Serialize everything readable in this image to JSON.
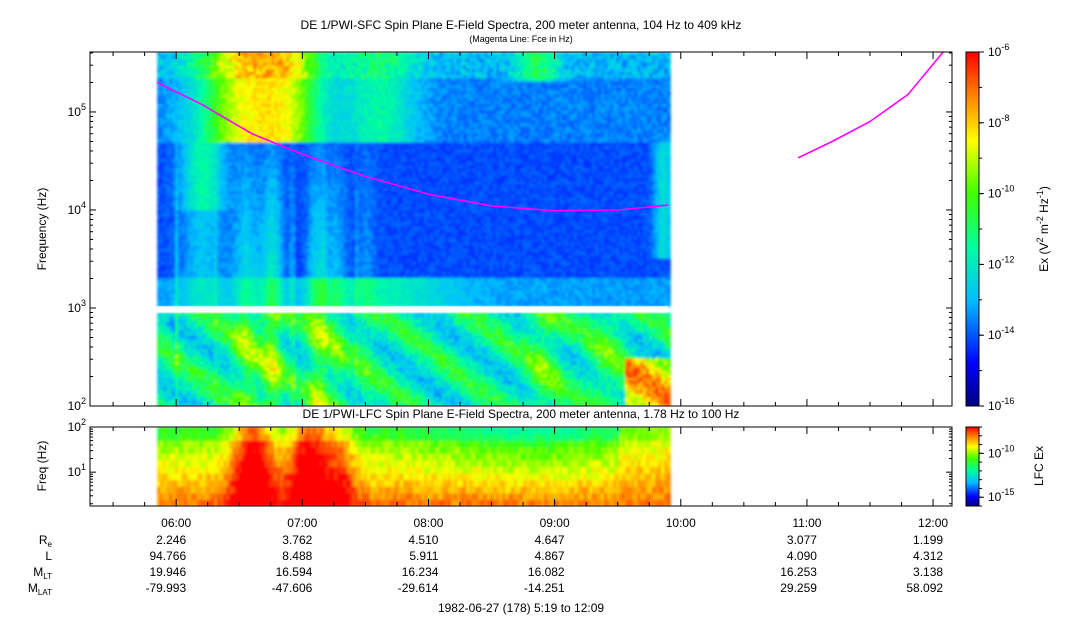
{
  "chart_data": [
    {
      "type": "heatmap",
      "title": "DE 1/PWI-SFC  Spin Plane E-Field Spectra, 200 meter antenna, 104 Hz to 409 kHz",
      "subtitle": "(Magenta Line: Fce in Hz)",
      "ylabel": "Frequency (Hz)",
      "yscale": "log",
      "ylim": [
        100,
        409000
      ],
      "y_ticks": [
        {
          "value": 100,
          "base": "10",
          "exp": "2"
        },
        {
          "value": 1000,
          "base": "10",
          "exp": "3"
        },
        {
          "value": 10000,
          "base": "10",
          "exp": "4"
        },
        {
          "value": 100000,
          "base": "10",
          "exp": "5"
        }
      ],
      "x_range_hours": [
        5.317,
        12.15
      ],
      "data_coverage_hours": [
        5.85,
        9.9
      ],
      "data_gap_hz": [
        900,
        1040
      ],
      "colorbar": {
        "label_base": "Ex (V",
        "label_sup1": "2",
        "label_mid": " m",
        "label_sup2": "-2",
        "label_mid2": " Hz",
        "label_sup3": "-1",
        "label_end": ")",
        "scale": "log",
        "range": [
          1e-16,
          1e-06
        ],
        "ticks": [
          {
            "value": 1e-06,
            "base": "10",
            "exp": "-6"
          },
          {
            "value": 1e-08,
            "base": "10",
            "exp": "-8"
          },
          {
            "value": 1e-10,
            "base": "10",
            "exp": "-10"
          },
          {
            "value": 1e-12,
            "base": "10",
            "exp": "-12"
          },
          {
            "value": 1e-14,
            "base": "10",
            "exp": "-14"
          },
          {
            "value": 1e-16,
            "base": "10",
            "exp": "-16"
          }
        ]
      },
      "fce_line": {
        "color": "#ff00ff",
        "segment1": [
          [
            5.85,
            200000
          ],
          [
            6.2,
            120000
          ],
          [
            6.6,
            60000
          ],
          [
            7.0,
            37000
          ],
          [
            7.5,
            22000
          ],
          [
            8.0,
            14500
          ],
          [
            8.5,
            11000
          ],
          [
            9.0,
            9800
          ],
          [
            9.5,
            10000
          ],
          [
            9.9,
            11200
          ]
        ],
        "segment2": [
          [
            10.93,
            34000
          ],
          [
            11.2,
            50000
          ],
          [
            11.5,
            80000
          ],
          [
            11.8,
            150000
          ],
          [
            12.08,
            409000
          ]
        ]
      }
    },
    {
      "type": "heatmap",
      "title": "DE 1/PWI-LFC  Spin Plane E-Field Spectra, 200 meter antenna, 1.78 Hz to 100 Hz",
      "ylabel": "Freq (Hz)",
      "yscale": "log",
      "ylim": [
        1.78,
        100
      ],
      "y_ticks": [
        {
          "value": 10,
          "base": "10",
          "exp": "1"
        },
        {
          "value": 100,
          "base": "10",
          "exp": "2"
        }
      ],
      "x_range_hours": [
        5.317,
        12.15
      ],
      "data_coverage_hours": [
        5.85,
        9.9
      ],
      "colorbar": {
        "label": "LFC Ex",
        "scale": "log",
        "range": [
          1e-16,
          1e-07
        ],
        "ticks": [
          {
            "value": 1e-10,
            "base": "10",
            "exp": "-10"
          },
          {
            "value": 1e-15,
            "base": "10",
            "exp": "-15"
          }
        ]
      }
    }
  ],
  "x_axis": {
    "ticks": [
      {
        "value": 6,
        "label": "06:00"
      },
      {
        "value": 7,
        "label": "07:00"
      },
      {
        "value": 8,
        "label": "08:00"
      },
      {
        "value": 9,
        "label": "09:00"
      },
      {
        "value": 10,
        "label": "10:00"
      },
      {
        "value": 11,
        "label": "11:00"
      },
      {
        "value": 12,
        "label": "12:00"
      }
    ],
    "minor_step_hours": 0.25
  },
  "ephemeris": {
    "labels": [
      {
        "base": "R",
        "sub": "e"
      },
      {
        "base": "L",
        "sub": ""
      },
      {
        "base": "M",
        "sub": "LT"
      },
      {
        "base": "M",
        "sub": "LAT"
      }
    ],
    "columns": [
      {
        "time": 6,
        "values": [
          "2.246",
          "94.766",
          "19.946",
          "-79.993"
        ]
      },
      {
        "time": 7,
        "values": [
          "3.762",
          "8.488",
          "16.594",
          "-47.606"
        ]
      },
      {
        "time": 8,
        "values": [
          "4.510",
          "5.911",
          "16.234",
          "-29.614"
        ]
      },
      {
        "time": 9,
        "values": [
          "4.647",
          "4.867",
          "16.082",
          "-14.251"
        ]
      },
      {
        "time": 11,
        "values": [
          "3.077",
          "4.090",
          "16.253",
          "29.259"
        ]
      },
      {
        "time": 12,
        "values": [
          "1.199",
          "4.312",
          "3.138",
          "58.092"
        ]
      }
    ]
  },
  "footer": "1982-06-27 (178) 5:19 to 12:09"
}
